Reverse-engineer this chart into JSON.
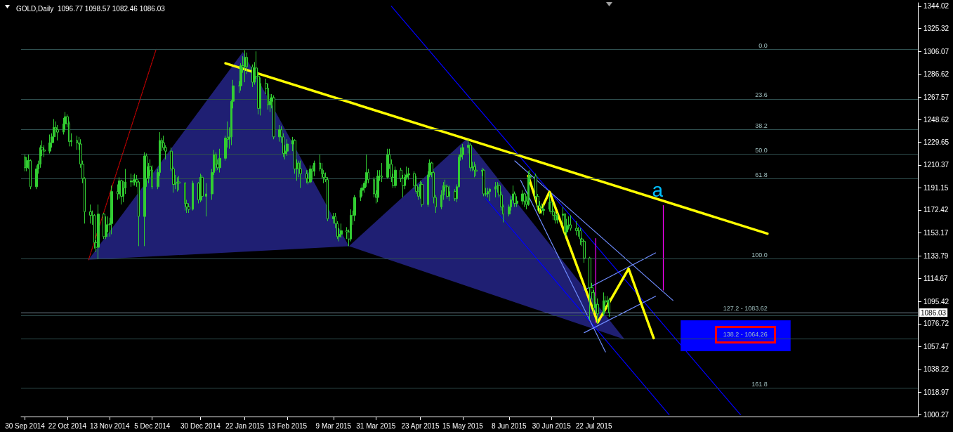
{
  "chart_data": {
    "type": "candlestick",
    "title": "GOLD,Daily  1096.77 1098.57 1082.46 1086.03",
    "color": "#32cd32",
    "x": [
      "2014-09-30",
      "2014-10-01",
      "2014-10-02",
      "2014-10-03",
      "2014-10-06",
      "2014-10-07",
      "2014-10-08",
      "2014-10-09",
      "2014-10-10",
      "2014-10-13",
      "2014-10-14",
      "2014-10-15",
      "2014-10-16",
      "2014-10-17",
      "2014-10-20",
      "2014-10-21",
      "2014-10-22",
      "2014-10-23",
      "2014-10-24",
      "2014-10-27",
      "2014-10-28",
      "2014-10-29",
      "2014-10-30",
      "2014-10-31",
      "2014-11-03",
      "2014-11-04",
      "2014-11-05",
      "2014-11-06",
      "2014-11-07",
      "2014-11-10",
      "2014-11-11",
      "2014-11-12",
      "2014-11-13",
      "2014-11-14",
      "2014-11-17",
      "2014-11-18",
      "2014-11-19",
      "2014-11-20",
      "2014-11-21",
      "2014-11-24",
      "2014-11-25",
      "2014-11-26",
      "2014-11-27",
      "2014-11-28",
      "2014-12-01",
      "2014-12-02",
      "2014-12-03",
      "2014-12-04",
      "2014-12-05",
      "2014-12-08",
      "2014-12-09",
      "2014-12-10",
      "2014-12-11",
      "2014-12-12",
      "2014-12-15",
      "2014-12-16",
      "2014-12-17",
      "2014-12-18",
      "2014-12-19",
      "2014-12-22",
      "2014-12-23",
      "2014-12-24",
      "2014-12-26",
      "2014-12-29",
      "2014-12-30",
      "2014-12-31",
      "2015-01-02",
      "2015-01-05",
      "2015-01-06",
      "2015-01-07",
      "2015-01-08",
      "2015-01-09",
      "2015-01-12",
      "2015-01-13",
      "2015-01-14",
      "2015-01-15",
      "2015-01-16",
      "2015-01-19",
      "2015-01-20",
      "2015-01-21",
      "2015-01-22",
      "2015-01-23",
      "2015-01-26",
      "2015-01-27",
      "2015-01-28",
      "2015-01-29",
      "2015-01-30",
      "2015-02-02",
      "2015-02-03",
      "2015-02-04",
      "2015-02-05",
      "2015-02-06",
      "2015-02-09",
      "2015-02-10",
      "2015-02-11",
      "2015-02-12",
      "2015-02-13",
      "2015-02-16",
      "2015-02-17",
      "2015-02-18",
      "2015-02-19",
      "2015-02-20",
      "2015-02-23",
      "2015-02-24",
      "2015-02-25",
      "2015-02-26",
      "2015-02-27",
      "2015-03-02",
      "2015-03-03",
      "2015-03-04",
      "2015-03-05",
      "2015-03-06",
      "2015-03-09",
      "2015-03-10",
      "2015-03-11",
      "2015-03-12",
      "2015-03-13",
      "2015-03-16",
      "2015-03-17",
      "2015-03-18",
      "2015-03-19",
      "2015-03-20",
      "2015-03-23",
      "2015-03-24",
      "2015-03-25",
      "2015-03-26",
      "2015-03-27",
      "2015-03-30",
      "2015-03-31",
      "2015-04-01",
      "2015-04-02",
      "2015-04-03",
      "2015-04-06",
      "2015-04-07",
      "2015-04-08",
      "2015-04-09",
      "2015-04-10",
      "2015-04-13",
      "2015-04-14",
      "2015-04-15",
      "2015-04-16",
      "2015-04-17",
      "2015-04-20",
      "2015-04-21",
      "2015-04-22",
      "2015-04-23",
      "2015-04-24",
      "2015-04-27",
      "2015-04-28",
      "2015-04-29",
      "2015-04-30",
      "2015-05-01",
      "2015-05-04",
      "2015-05-05",
      "2015-05-06",
      "2015-05-07",
      "2015-05-08",
      "2015-05-11",
      "2015-05-12",
      "2015-05-13",
      "2015-05-14",
      "2015-05-15",
      "2015-05-18",
      "2015-05-19",
      "2015-05-20",
      "2015-05-21",
      "2015-05-22",
      "2015-05-25",
      "2015-05-26",
      "2015-05-27",
      "2015-05-28",
      "2015-05-29",
      "2015-06-01",
      "2015-06-02",
      "2015-06-03",
      "2015-06-04",
      "2015-06-05",
      "2015-06-08",
      "2015-06-09",
      "2015-06-10",
      "2015-06-11",
      "2015-06-12",
      "2015-06-15",
      "2015-06-16",
      "2015-06-17",
      "2015-06-18",
      "2015-06-19",
      "2015-06-22",
      "2015-06-23",
      "2015-06-24",
      "2015-06-25",
      "2015-06-26",
      "2015-06-29",
      "2015-06-30",
      "2015-07-01",
      "2015-07-02",
      "2015-07-03",
      "2015-07-06",
      "2015-07-07",
      "2015-07-08",
      "2015-07-09",
      "2015-07-10",
      "2015-07-13",
      "2015-07-14",
      "2015-07-15",
      "2015-07-16",
      "2015-07-17",
      "2015-07-20",
      "2015-07-21",
      "2015-07-22",
      "2015-07-23",
      "2015-07-24",
      "2015-07-27",
      "2015-07-28",
      "2015-07-29",
      "2015-07-30"
    ],
    "ohlc": [
      [
        1217,
        1219,
        1205,
        1208
      ],
      [
        1208,
        1217,
        1205,
        1214
      ],
      [
        1214,
        1219,
        1207,
        1214
      ],
      [
        1214,
        1215,
        1190,
        1192
      ],
      [
        1192,
        1210,
        1190,
        1207
      ],
      [
        1207,
        1214,
        1203,
        1211
      ],
      [
        1211,
        1227,
        1208,
        1225
      ],
      [
        1225,
        1231,
        1218,
        1223
      ],
      [
        1223,
        1227,
        1217,
        1222
      ],
      [
        1222,
        1236,
        1220,
        1229
      ],
      [
        1229,
        1237,
        1225,
        1234
      ],
      [
        1234,
        1249,
        1229,
        1242
      ],
      [
        1242,
        1247,
        1234,
        1240
      ],
      [
        1240,
        1244,
        1231,
        1238
      ],
      [
        1238,
        1250,
        1236,
        1245
      ],
      [
        1245,
        1255,
        1240,
        1251
      ],
      [
        1251,
        1253,
        1242,
        1245
      ],
      [
        1245,
        1247,
        1226,
        1230
      ],
      [
        1230,
        1237,
        1226,
        1231
      ],
      [
        1231,
        1235,
        1223,
        1229
      ],
      [
        1229,
        1234,
        1223,
        1228
      ],
      [
        1228,
        1232,
        1208,
        1211
      ],
      [
        1211,
        1214,
        1195,
        1199
      ],
      [
        1199,
        1200,
        1161,
        1171
      ],
      [
        1171,
        1177,
        1161,
        1168
      ],
      [
        1168,
        1172,
        1160,
        1168
      ],
      [
        1168,
        1169,
        1140,
        1145
      ],
      [
        1145,
        1147,
        1137,
        1141
      ],
      [
        1141,
        1177,
        1131,
        1169
      ],
      [
        1169,
        1170,
        1148,
        1150
      ],
      [
        1150,
        1167,
        1148,
        1160
      ],
      [
        1160,
        1167,
        1154,
        1160
      ],
      [
        1160,
        1166,
        1150,
        1161
      ],
      [
        1161,
        1193,
        1152,
        1188
      ],
      [
        1188,
        1194,
        1181,
        1186
      ],
      [
        1186,
        1200,
        1182,
        1197
      ],
      [
        1197,
        1198,
        1177,
        1184
      ],
      [
        1184,
        1197,
        1179,
        1191
      ],
      [
        1191,
        1207,
        1186,
        1196
      ],
      [
        1196,
        1203,
        1192,
        1197
      ],
      [
        1197,
        1202,
        1193,
        1196
      ],
      [
        1196,
        1203,
        1193,
        1198
      ],
      [
        1198,
        1202,
        1192,
        1196
      ],
      [
        1196,
        1197,
        1142,
        1167
      ],
      [
        1167,
        1221,
        1142,
        1218
      ],
      [
        1218,
        1220,
        1192,
        1199
      ],
      [
        1199,
        1212,
        1195,
        1209
      ],
      [
        1209,
        1215,
        1201,
        1206
      ],
      [
        1206,
        1210,
        1190,
        1192
      ],
      [
        1192,
        1207,
        1190,
        1204
      ],
      [
        1204,
        1238,
        1201,
        1231
      ],
      [
        1231,
        1233,
        1222,
        1229
      ],
      [
        1229,
        1235,
        1223,
        1225
      ],
      [
        1225,
        1227,
        1215,
        1222
      ],
      [
        1222,
        1225,
        1205,
        1207
      ],
      [
        1207,
        1209,
        1187,
        1194
      ],
      [
        1194,
        1202,
        1190,
        1195
      ],
      [
        1195,
        1200,
        1188,
        1196
      ],
      [
        1196,
        1201,
        1189,
        1195
      ],
      [
        1195,
        1196,
        1172,
        1178
      ],
      [
        1178,
        1181,
        1170,
        1175
      ],
      [
        1175,
        1178,
        1170,
        1173
      ],
      [
        1173,
        1197,
        1172,
        1195
      ],
      [
        1195,
        1196,
        1178,
        1181
      ],
      [
        1181,
        1203,
        1179,
        1200
      ],
      [
        1200,
        1202,
        1180,
        1184
      ],
      [
        1184,
        1195,
        1167,
        1186
      ],
      [
        1186,
        1207,
        1181,
        1204
      ],
      [
        1204,
        1223,
        1202,
        1219
      ],
      [
        1219,
        1221,
        1205,
        1211
      ],
      [
        1211,
        1215,
        1206,
        1208
      ],
      [
        1208,
        1224,
        1204,
        1216
      ],
      [
        1216,
        1235,
        1214,
        1233
      ],
      [
        1233,
        1247,
        1225,
        1232
      ],
      [
        1232,
        1242,
        1224,
        1234
      ],
      [
        1234,
        1265,
        1227,
        1264
      ],
      [
        1264,
        1282,
        1258,
        1277
      ],
      [
        1277,
        1281,
        1271,
        1277
      ],
      [
        1277,
        1296,
        1273,
        1294
      ],
      [
        1294,
        1302,
        1288,
        1293
      ],
      [
        1293,
        1307,
        1280,
        1301
      ],
      [
        1301,
        1305,
        1287,
        1293
      ],
      [
        1293,
        1295,
        1276,
        1280
      ],
      [
        1280,
        1297,
        1278,
        1292
      ],
      [
        1292,
        1306,
        1283,
        1285
      ],
      [
        1285,
        1288,
        1253,
        1258
      ],
      [
        1258,
        1284,
        1252,
        1279
      ],
      [
        1279,
        1283,
        1270,
        1275
      ],
      [
        1275,
        1279,
        1257,
        1261
      ],
      [
        1261,
        1270,
        1255,
        1264
      ],
      [
        1264,
        1270,
        1258,
        1267
      ],
      [
        1267,
        1269,
        1232,
        1234
      ],
      [
        1234,
        1244,
        1230,
        1240
      ],
      [
        1240,
        1243,
        1229,
        1234
      ],
      [
        1234,
        1237,
        1217,
        1220
      ],
      [
        1220,
        1227,
        1215,
        1222
      ],
      [
        1222,
        1232,
        1218,
        1228
      ],
      [
        1228,
        1234,
        1222,
        1231
      ],
      [
        1231,
        1232,
        1203,
        1207
      ],
      [
        1207,
        1215,
        1197,
        1212
      ],
      [
        1212,
        1214,
        1200,
        1207
      ],
      [
        1207,
        1214,
        1191,
        1203
      ],
      [
        1203,
        1206,
        1195,
        1199
      ],
      [
        1199,
        1206,
        1194,
        1196
      ],
      [
        1196,
        1210,
        1195,
        1207
      ],
      [
        1207,
        1210,
        1198,
        1205
      ],
      [
        1205,
        1214,
        1201,
        1212
      ],
      [
        1212,
        1219,
        1205,
        1207
      ],
      [
        1207,
        1212,
        1199,
        1203
      ],
      [
        1203,
        1206,
        1195,
        1200
      ],
      [
        1200,
        1204,
        1196,
        1198
      ],
      [
        1198,
        1200,
        1163,
        1165
      ],
      [
        1165,
        1170,
        1161,
        1167
      ],
      [
        1167,
        1170,
        1157,
        1161
      ],
      [
        1161,
        1163,
        1148,
        1150
      ],
      [
        1150,
        1157,
        1146,
        1152
      ],
      [
        1152,
        1161,
        1149,
        1155
      ],
      [
        1155,
        1158,
        1148,
        1154
      ],
      [
        1154,
        1156,
        1142,
        1148
      ],
      [
        1148,
        1173,
        1146,
        1168
      ],
      [
        1168,
        1172,
        1160,
        1168
      ],
      [
        1168,
        1185,
        1163,
        1183
      ],
      [
        1183,
        1191,
        1180,
        1189
      ],
      [
        1189,
        1194,
        1184,
        1191
      ],
      [
        1191,
        1197,
        1187,
        1195
      ],
      [
        1195,
        1219,
        1192,
        1204
      ],
      [
        1204,
        1207,
        1195,
        1198
      ],
      [
        1198,
        1200,
        1183,
        1186
      ],
      [
        1186,
        1189,
        1178,
        1183
      ],
      [
        1183,
        1206,
        1179,
        1201
      ],
      [
        1201,
        1206,
        1197,
        1201
      ],
      [
        1201,
        1212,
        1196,
        1200
      ],
      [
        1200,
        1224,
        1199,
        1219
      ],
      [
        1219,
        1224,
        1207,
        1211
      ],
      [
        1211,
        1215,
        1196,
        1200
      ],
      [
        1200,
        1203,
        1191,
        1193
      ],
      [
        1193,
        1209,
        1191,
        1206
      ],
      [
        1206,
        1208,
        1196,
        1199
      ],
      [
        1199,
        1202,
        1183,
        1193
      ],
      [
        1193,
        1203,
        1190,
        1200
      ],
      [
        1200,
        1209,
        1198,
        1202
      ],
      [
        1202,
        1208,
        1198,
        1203
      ],
      [
        1203,
        1205,
        1190,
        1193
      ],
      [
        1193,
        1201,
        1186,
        1188
      ],
      [
        1188,
        1192,
        1181,
        1184
      ],
      [
        1184,
        1197,
        1182,
        1194
      ],
      [
        1194,
        1196,
        1175,
        1177
      ],
      [
        1177,
        1205,
        1175,
        1202
      ],
      [
        1202,
        1215,
        1200,
        1212
      ],
      [
        1212,
        1213,
        1200,
        1204
      ],
      [
        1204,
        1205,
        1178,
        1183
      ],
      [
        1183,
        1185,
        1170,
        1175
      ],
      [
        1175,
        1189,
        1173,
        1185
      ],
      [
        1185,
        1196,
        1181,
        1193
      ],
      [
        1193,
        1198,
        1188,
        1192
      ],
      [
        1192,
        1194,
        1182,
        1184
      ],
      [
        1184,
        1193,
        1180,
        1188
      ],
      [
        1188,
        1190,
        1180,
        1182
      ],
      [
        1182,
        1194,
        1179,
        1192
      ],
      [
        1192,
        1219,
        1191,
        1217
      ],
      [
        1217,
        1225,
        1214,
        1219
      ],
      [
        1219,
        1228,
        1215,
        1225
      ],
      [
        1225,
        1232,
        1220,
        1227
      ],
      [
        1227,
        1229,
        1205,
        1208
      ],
      [
        1208,
        1213,
        1205,
        1209
      ],
      [
        1209,
        1213,
        1200,
        1206
      ],
      [
        1206,
        1211,
        1201,
        1205
      ],
      [
        1205,
        1208,
        1201,
        1206
      ],
      [
        1206,
        1207,
        1184,
        1186
      ],
      [
        1186,
        1191,
        1184,
        1186
      ],
      [
        1186,
        1191,
        1183,
        1188
      ],
      [
        1188,
        1191,
        1180,
        1190
      ],
      [
        1190,
        1196,
        1183,
        1192
      ],
      [
        1192,
        1196,
        1187,
        1193
      ],
      [
        1193,
        1195,
        1183,
        1185
      ],
      [
        1185,
        1188,
        1172,
        1175
      ],
      [
        1175,
        1177,
        1162,
        1169
      ],
      [
        1169,
        1177,
        1167,
        1175
      ],
      [
        1175,
        1184,
        1172,
        1181
      ],
      [
        1181,
        1193,
        1180,
        1186
      ],
      [
        1186,
        1188,
        1175,
        1178
      ],
      [
        1178,
        1184,
        1175,
        1180
      ],
      [
        1180,
        1189,
        1177,
        1186
      ],
      [
        1186,
        1187,
        1175,
        1180
      ],
      [
        1180,
        1184,
        1173,
        1177
      ],
      [
        1177,
        1205,
        1176,
        1200
      ],
      [
        1200,
        1206,
        1196,
        1201
      ],
      [
        1201,
        1203,
        1181,
        1184
      ],
      [
        1184,
        1186,
        1172,
        1176
      ],
      [
        1176,
        1180,
        1170,
        1174
      ],
      [
        1174,
        1178,
        1169,
        1172
      ],
      [
        1172,
        1177,
        1168,
        1173
      ],
      [
        1173,
        1187,
        1171,
        1179
      ],
      [
        1179,
        1181,
        1169,
        1171
      ],
      [
        1171,
        1173,
        1164,
        1168
      ],
      [
        1168,
        1171,
        1161,
        1164
      ],
      [
        1164,
        1170,
        1161,
        1168
      ],
      [
        1168,
        1175,
        1160,
        1169
      ],
      [
        1169,
        1170,
        1150,
        1154
      ],
      [
        1154,
        1165,
        1151,
        1159
      ],
      [
        1159,
        1167,
        1156,
        1160
      ],
      [
        1160,
        1168,
        1155,
        1157
      ],
      [
        1157,
        1163,
        1151,
        1155
      ],
      [
        1155,
        1158,
        1150,
        1155
      ],
      [
        1155,
        1157,
        1143,
        1148
      ],
      [
        1148,
        1149,
        1142,
        1146
      ],
      [
        1146,
        1147,
        1128,
        1132
      ],
      [
        1132,
        1133,
        1080,
        1107
      ],
      [
        1107,
        1111,
        1097,
        1103
      ],
      [
        1103,
        1105,
        1086,
        1090
      ],
      [
        1090,
        1100,
        1086,
        1093
      ],
      [
        1093,
        1098,
        1077,
        1085
      ],
      [
        1085,
        1103,
        1083,
        1096
      ],
      [
        1096,
        1100,
        1090,
        1095
      ],
      [
        1095,
        1100,
        1089,
        1096
      ],
      [
        1096.77,
        1098.57,
        1082.46,
        1086.03
      ]
    ],
    "series": [
      {
        "type": "area",
        "color": "#1f1f73",
        "x": [
          "2014-11-02",
          "2015-01-21",
          "2015-03-17"
        ],
        "values": [
          1130.5,
          1305.5,
          1142.0
        ]
      },
      {
        "type": "area",
        "color": "#1f1f73",
        "x": [
          "2015-03-17",
          "2015-05-17",
          "2015-08-07"
        ],
        "values": [
          1142.0,
          1232.3,
          1063.4
        ]
      },
      {
        "type": "area",
        "color": "#0000ff",
        "x": [
          "2015-09-05",
          "2015-11-01",
          "2015-11-01",
          "2015-09-05"
        ],
        "values": [
          1079.5,
          1079.5,
          1053.5,
          1053.5
        ]
      },
      {
        "type": "line",
        "color": "#0000ff",
        "x": [
          "2015-04-08",
          "2015-10-06"
        ],
        "values": [
          1344.0,
          1000.0
        ]
      },
      {
        "type": "line",
        "color": "#0000ff",
        "x": [
          "2015-05-27",
          "2015-08-30"
        ],
        "values": [
          1182.0,
          1000.0
        ]
      },
      {
        "type": "line",
        "color": "#6f8cff",
        "x": [
          "2015-06-11",
          "2015-09-01"
        ],
        "values": [
          1213.8,
          1096.3
        ]
      },
      {
        "type": "line",
        "color": "#6f8cff",
        "x": [
          "2015-06-14",
          "2015-07-28"
        ],
        "values": [
          1197.6,
          1052.9
        ]
      },
      {
        "type": "line",
        "color": "#6f8cff",
        "x": [
          "2015-07-17",
          "2015-08-23"
        ],
        "values": [
          1069.1,
          1099.8
        ]
      },
      {
        "type": "line",
        "color": "#6f8cff",
        "x": [
          "2015-07-17",
          "2015-08-23"
        ],
        "values": [
          1105.0,
          1136.3
        ]
      },
      {
        "type": "line",
        "color": "#c80000",
        "line_style": "dotted",
        "x": [
          "2014-11-02",
          "2014-12-07"
        ],
        "values": [
          1130.5,
          1307.6
        ]
      },
      {
        "type": "line",
        "color": "#ffff00",
        "x": [
          "2015-01-12",
          "2015-10-20"
        ],
        "values": [
          1296.0,
          1152.5
        ]
      },
      {
        "type": "line",
        "color": "#ffff00",
        "x": [
          "2015-06-18",
          "2015-06-24",
          "2015-06-29",
          "2015-07-24",
          "2015-08-09",
          "2015-08-22"
        ],
        "values": [
          1201.1,
          1170.4,
          1187.8,
          1077.8,
          1123.0,
          1064.5
        ]
      },
      {
        "type": "line",
        "color": "#ff00ff",
        "x": [
          "2015-07-23",
          "2015-07-23"
        ],
        "values": [
          1148.4,
          1077.8
        ]
      },
      {
        "type": "line",
        "color": "#ff00ff",
        "x": [
          "2015-08-27",
          "2015-08-27"
        ],
        "values": [
          1176.2,
          1105.0
        ]
      }
    ],
    "ref_lines": [
      {
        "axis": "y",
        "value": 1307.5,
        "color": "#2f4f4f"
      },
      {
        "axis": "y",
        "value": 1265.96,
        "color": "#2f4f4f"
      },
      {
        "axis": "y",
        "value": 1240.3,
        "color": "#2f4f4f"
      },
      {
        "axis": "y",
        "value": 1219.5,
        "color": "#2f4f4f"
      },
      {
        "axis": "y",
        "value": 1198.7,
        "color": "#2f4f4f"
      },
      {
        "axis": "y",
        "value": 1131.5,
        "color": "#2f4f4f"
      },
      {
        "axis": "y",
        "value": 1083.62,
        "color": "#2f4f4f"
      },
      {
        "axis": "y",
        "value": 1064.26,
        "color": "#2f4f4f"
      },
      {
        "axis": "y",
        "value": 1022.7,
        "color": "#2f4f4f"
      },
      {
        "axis": "y",
        "value": 1086.03,
        "label": "1086.03",
        "color": "#778899"
      }
    ],
    "annotations": [
      "a",
      {
        "text": "0.0",
        "x": "2015-10-20",
        "y": 1307.5
      },
      {
        "text": "23.6",
        "x": "2015-10-20",
        "y": 1265.96
      },
      {
        "text": "38.2",
        "x": "2015-10-20",
        "y": 1240.3
      },
      {
        "text": "50.0",
        "x": "2015-10-20",
        "y": 1219.5
      },
      {
        "text": "61.8",
        "x": "2015-10-20",
        "y": 1198.7
      },
      {
        "text": "100.0",
        "x": "2015-10-20",
        "y": 1131.5
      },
      {
        "text": "127.2 - 1083.62",
        "x": "2015-10-20",
        "y": 1083.62
      },
      {
        "text": "138.2 - 1064.26",
        "x": "2015-10-20",
        "y": 1064.26
      },
      {
        "text": "161.8",
        "x": "2015-10-20",
        "y": 1022.7
      }
    ],
    "xlim": [
      "2014-09-28",
      "2016-01-06"
    ],
    "xticks": [
      {
        "value": "2014-09-30",
        "label": "30 Sep 2014"
      },
      {
        "value": "2014-10-22",
        "label": "22 Oct 2014"
      },
      {
        "value": "2014-11-13",
        "label": "13 Nov 2014"
      },
      {
        "value": "2014-12-05",
        "label": "5 Dec 2014"
      },
      {
        "value": "2014-12-30",
        "label": "30 Dec 2014"
      },
      {
        "value": "2015-01-22",
        "label": "22 Jan 2015"
      },
      {
        "value": "2015-02-13",
        "label": "13 Feb 2015"
      },
      {
        "value": "2015-03-09",
        "label": "9 Mar 2015"
      },
      {
        "value": "2015-03-31",
        "label": "31 Mar 2015"
      },
      {
        "value": "2015-04-23",
        "label": "23 Apr 2015"
      },
      {
        "value": "2015-05-15",
        "label": "15 May 2015"
      },
      {
        "value": "2015-06-08",
        "label": "8 Jun 2015"
      },
      {
        "value": "2015-06-30",
        "label": "30 Jun 2015"
      },
      {
        "value": "2015-07-22",
        "label": "22 Jul 2015"
      }
    ],
    "ylim": [
      998.5,
      1346.9
    ],
    "yticks": [
      1000.27,
      1018.97,
      1038.22,
      1057.47,
      1076.72,
      1095.42,
      1114.67,
      1133.79,
      1153.17,
      1172.42,
      1191.15,
      1210.37,
      1229.65,
      1248.62,
      1267.57,
      1286.62,
      1306.07,
      1325.32,
      1344.02
    ],
    "grid": false
  }
}
